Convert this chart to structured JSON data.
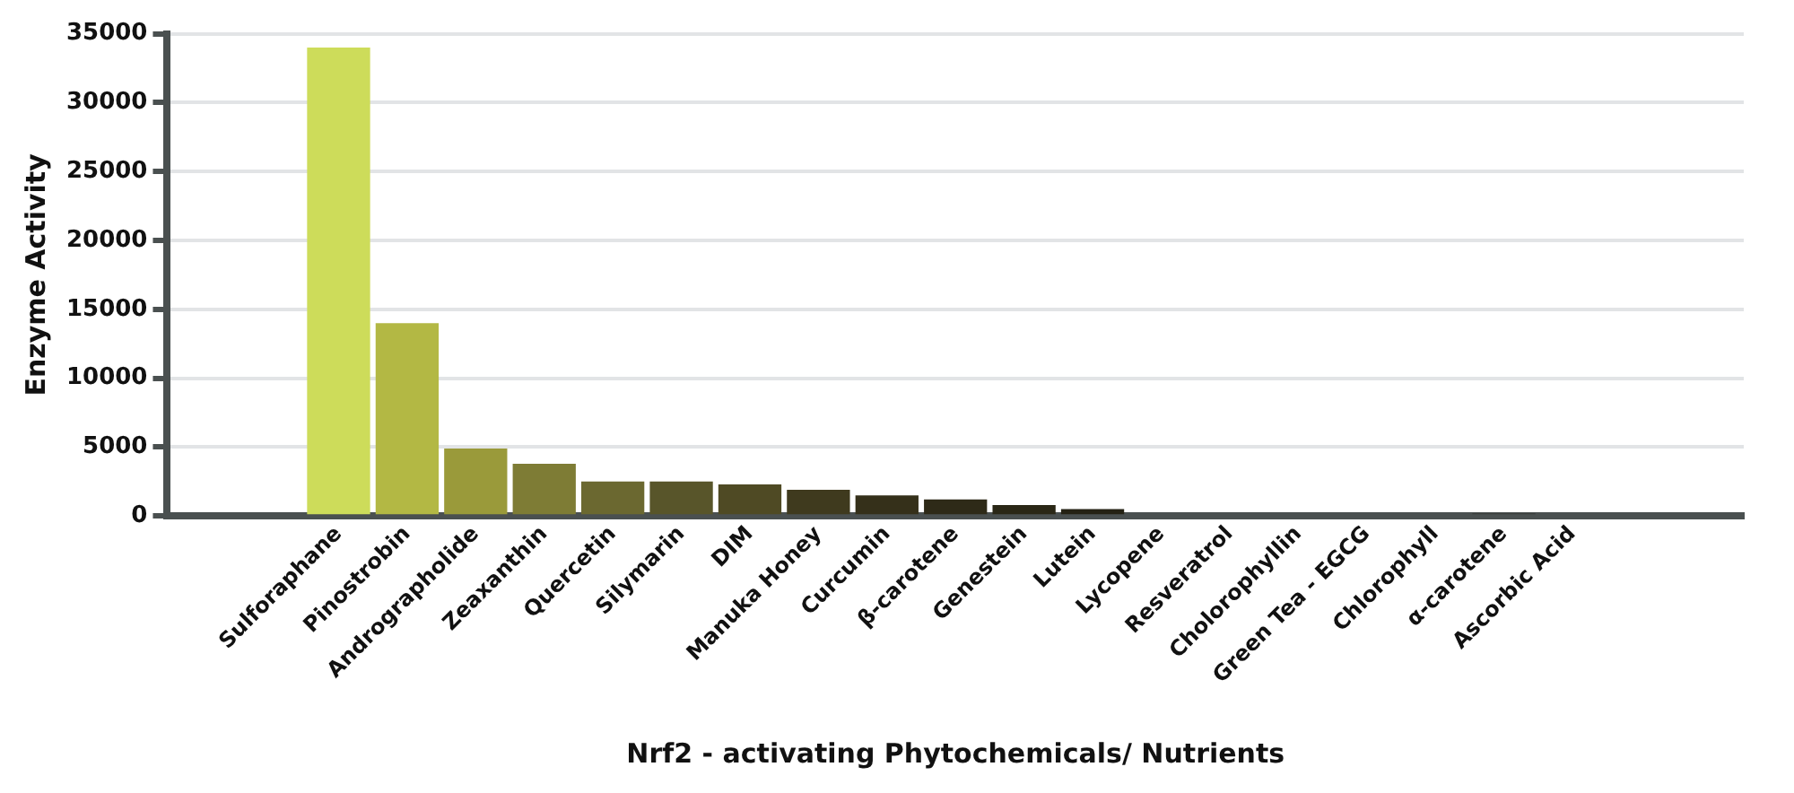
{
  "chart_data": {
    "type": "bar",
    "xlabel": "Nrf2 - activating Phytochemicals/ Nutrients",
    "ylabel": "Enzyme Activity",
    "categories": [
      null,
      null,
      "Sulforaphane",
      "Pinostrobin",
      "Andrographolide",
      "Zeaxanthin",
      "Quercetin",
      "Silymarin",
      "DIM",
      "Manuka Honey",
      "Curcumin",
      "β-carotene",
      "Genestein",
      "Lutein",
      "Lycopene",
      "Resveratrol",
      "Cholorophyllin",
      "Green Tea - EGCG",
      "Chlorophyll",
      "α-carotene",
      "Ascorbic Acid",
      null,
      null
    ],
    "values": [
      null,
      null,
      34000,
      14000,
      4900,
      3800,
      2500,
      2500,
      2300,
      1900,
      1500,
      1200,
      800,
      500,
      0,
      0,
      0,
      0,
      0,
      200,
      0,
      null,
      null
    ],
    "colors": [
      "#cddc5a",
      "#cddc5a",
      "#cddc5a",
      "#b3b844",
      "#9a9a3a",
      "#7e7c35",
      "#6b6830",
      "#58552a",
      "#4f4a24",
      "#3f3a1e",
      "#35301a",
      "#2e2a18",
      "#2a2716",
      "#252214",
      "#252214",
      "#252214",
      "#252214",
      "#252214",
      "#252214",
      "#3a3d3a",
      "#252214",
      "#252214",
      "#252214"
    ],
    "ylim": [
      0,
      35000
    ],
    "yticks": [
      0,
      5000,
      10000,
      15000,
      20000,
      25000,
      30000,
      35000
    ],
    "grid": "y"
  }
}
